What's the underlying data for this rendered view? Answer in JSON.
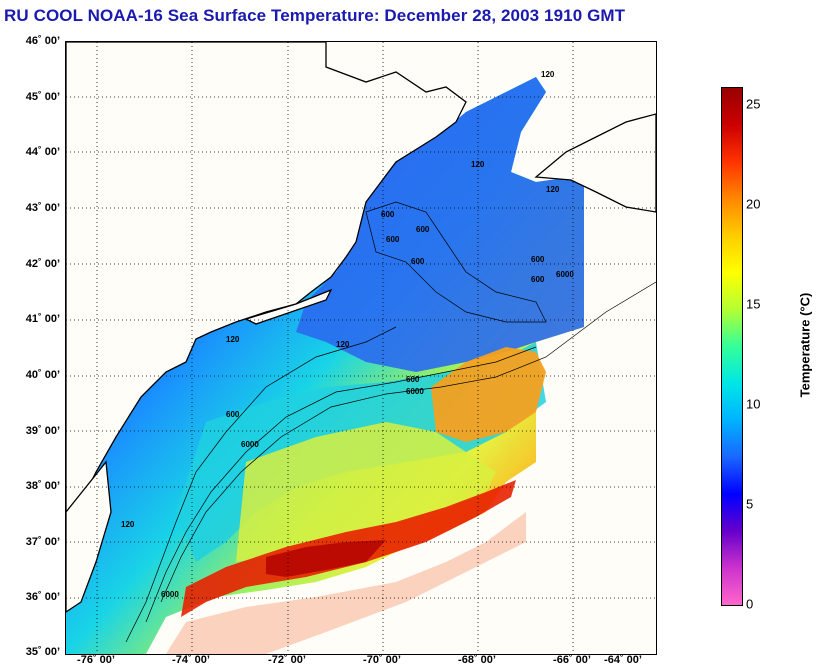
{
  "title": "RU COOL  NOAA-16  Sea Surface Temperature:  December 28, 2003 1910 GMT",
  "map": {
    "lat_labels": [
      "46˚ 00’",
      "45˚ 00’",
      "44˚ 00’",
      "43˚ 00’",
      "42˚ 00’",
      "41˚ 00’",
      "40˚ 00’",
      "39˚ 00’",
      "38˚ 00’",
      "37˚ 00’",
      "36˚ 00’",
      "35˚ 00’"
    ],
    "lon_labels": [
      "-76˚ 00’",
      "-74˚ 00’",
      "-72˚ 00’",
      "-70˚ 00’",
      "-68˚ 00’",
      "-66˚ 00’",
      "-64˚ 00’"
    ],
    "contour_labels": [
      "120",
      "120",
      "120",
      "600",
      "600",
      "600",
      "600",
      "600",
      "600",
      "600",
      "600",
      "6000",
      "6000",
      "6000",
      "6000",
      "120",
      "120",
      "120"
    ]
  },
  "colorbar": {
    "title": "Temperature (°C)",
    "ticks": [
      "25",
      "20",
      "15",
      "10",
      "5",
      "0"
    ],
    "colors": [
      "#ff66cc",
      "#cc33cc",
      "#6600cc",
      "#0000ff",
      "#1a66ff",
      "#00b3ff",
      "#00e6e6",
      "#33ff99",
      "#b3ff33",
      "#ffff00",
      "#ffcc00",
      "#ff8800",
      "#ff3300",
      "#cc0000",
      "#990000"
    ]
  }
}
